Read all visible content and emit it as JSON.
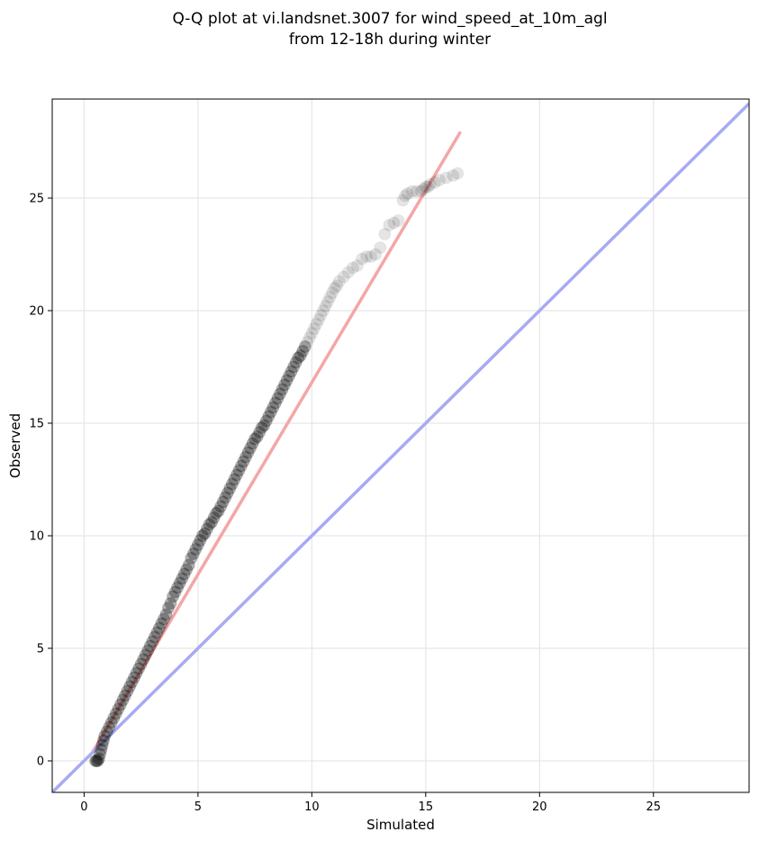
{
  "chart_data": {
    "type": "scatter",
    "title": [
      "Q-Q plot at vi.landsnet.3007 for wind_speed_at_10m_agl",
      "from 12-18h during winter"
    ],
    "xlabel": "Simulated",
    "ylabel": "Observed",
    "xlim": [
      -1.4,
      29.2
    ],
    "ylim": [
      -1.4,
      29.4
    ],
    "xticks": [
      0,
      5,
      10,
      15,
      20,
      25
    ],
    "yticks": [
      0,
      5,
      10,
      15,
      20,
      25
    ],
    "grid": true,
    "series": [
      {
        "kind": "quantile-points",
        "color": "#000000",
        "x": [
          0.5,
          0.55,
          0.6,
          0.65,
          0.7,
          0.75,
          0.8,
          0.85,
          0.9,
          1.0,
          1.1,
          1.2,
          1.3,
          1.4,
          1.5,
          1.6,
          1.7,
          1.8,
          1.9,
          2.0,
          2.1,
          2.2,
          2.3,
          2.4,
          2.5,
          2.6,
          2.7,
          2.8,
          2.9,
          3.0,
          3.1,
          3.2,
          3.3,
          3.4,
          3.5,
          3.6,
          3.7,
          3.8,
          3.9,
          4.0,
          4.1,
          4.2,
          4.3,
          4.4,
          4.5,
          4.6,
          4.7,
          4.8,
          4.9,
          5.0,
          5.1,
          5.2,
          5.3,
          5.4,
          5.5,
          5.6,
          5.7,
          5.8,
          5.9,
          6.0,
          6.1,
          6.2,
          6.3,
          6.4,
          6.5,
          6.6,
          6.7,
          6.8,
          6.9,
          7.0,
          7.1,
          7.2,
          7.3,
          7.4,
          7.5,
          7.6,
          7.7,
          7.8,
          7.9,
          8.0,
          8.1,
          8.2,
          8.3,
          8.4,
          8.5,
          8.6,
          8.7,
          8.8,
          8.9,
          9.0,
          9.1,
          9.2,
          9.3,
          9.4,
          9.5,
          9.6,
          9.7,
          9.8,
          9.9,
          10.0,
          10.1,
          10.2,
          10.3,
          10.4,
          10.5,
          10.6,
          10.7,
          10.8,
          10.9,
          11.0,
          11.1,
          11.2,
          11.4,
          11.6,
          11.8,
          12.0,
          12.2,
          12.4,
          12.6,
          12.8,
          13.0,
          13.2,
          13.4,
          13.6,
          13.8,
          14.0,
          14.1,
          14.2,
          14.4,
          14.6,
          14.8,
          14.9,
          15.0,
          15.1,
          15.2,
          15.4,
          15.6,
          15.9,
          16.2,
          16.4
        ],
        "y": [
          0.0,
          0.0,
          0.0,
          0.1,
          0.3,
          0.5,
          0.7,
          0.9,
          1.1,
          1.3,
          1.5,
          1.7,
          1.9,
          2.1,
          2.3,
          2.5,
          2.7,
          2.9,
          3.1,
          3.3,
          3.5,
          3.7,
          3.9,
          4.1,
          4.3,
          4.5,
          4.7,
          4.9,
          5.1,
          5.3,
          5.5,
          5.7,
          5.9,
          6.1,
          6.3,
          6.5,
          6.8,
          7.0,
          7.3,
          7.5,
          7.7,
          7.9,
          8.1,
          8.3,
          8.5,
          8.7,
          9.0,
          9.2,
          9.4,
          9.6,
          9.8,
          10.0,
          10.1,
          10.3,
          10.5,
          10.6,
          10.8,
          11.0,
          11.1,
          11.3,
          11.5,
          11.7,
          11.9,
          12.1,
          12.3,
          12.5,
          12.7,
          12.9,
          13.1,
          13.3,
          13.5,
          13.7,
          13.9,
          14.1,
          14.3,
          14.4,
          14.6,
          14.8,
          14.9,
          15.1,
          15.3,
          15.5,
          15.7,
          15.9,
          16.1,
          16.3,
          16.5,
          16.7,
          16.9,
          17.1,
          17.3,
          17.5,
          17.7,
          17.9,
          18.0,
          18.2,
          18.4,
          18.6,
          18.8,
          19.0,
          19.2,
          19.4,
          19.6,
          19.8,
          20.0,
          20.2,
          20.4,
          20.6,
          20.8,
          21.0,
          21.1,
          21.3,
          21.5,
          21.7,
          21.9,
          22.0,
          22.3,
          22.4,
          22.4,
          22.5,
          22.8,
          23.4,
          23.8,
          23.9,
          24.0,
          24.9,
          25.1,
          25.2,
          25.3,
          25.3,
          25.3,
          25.4,
          25.5,
          25.5,
          25.6,
          25.7,
          25.8,
          25.9,
          26.0,
          26.1
        ]
      },
      {
        "kind": "fit-line",
        "color": "#f4a6a6",
        "x": [
          0.35,
          16.5
        ],
        "y": [
          0.35,
          27.9
        ]
      },
      {
        "kind": "reference-line-1to1",
        "color": "#a8aaf2",
        "x": [
          -1.4,
          29.2
        ],
        "y": [
          -1.4,
          29.2
        ]
      }
    ]
  }
}
